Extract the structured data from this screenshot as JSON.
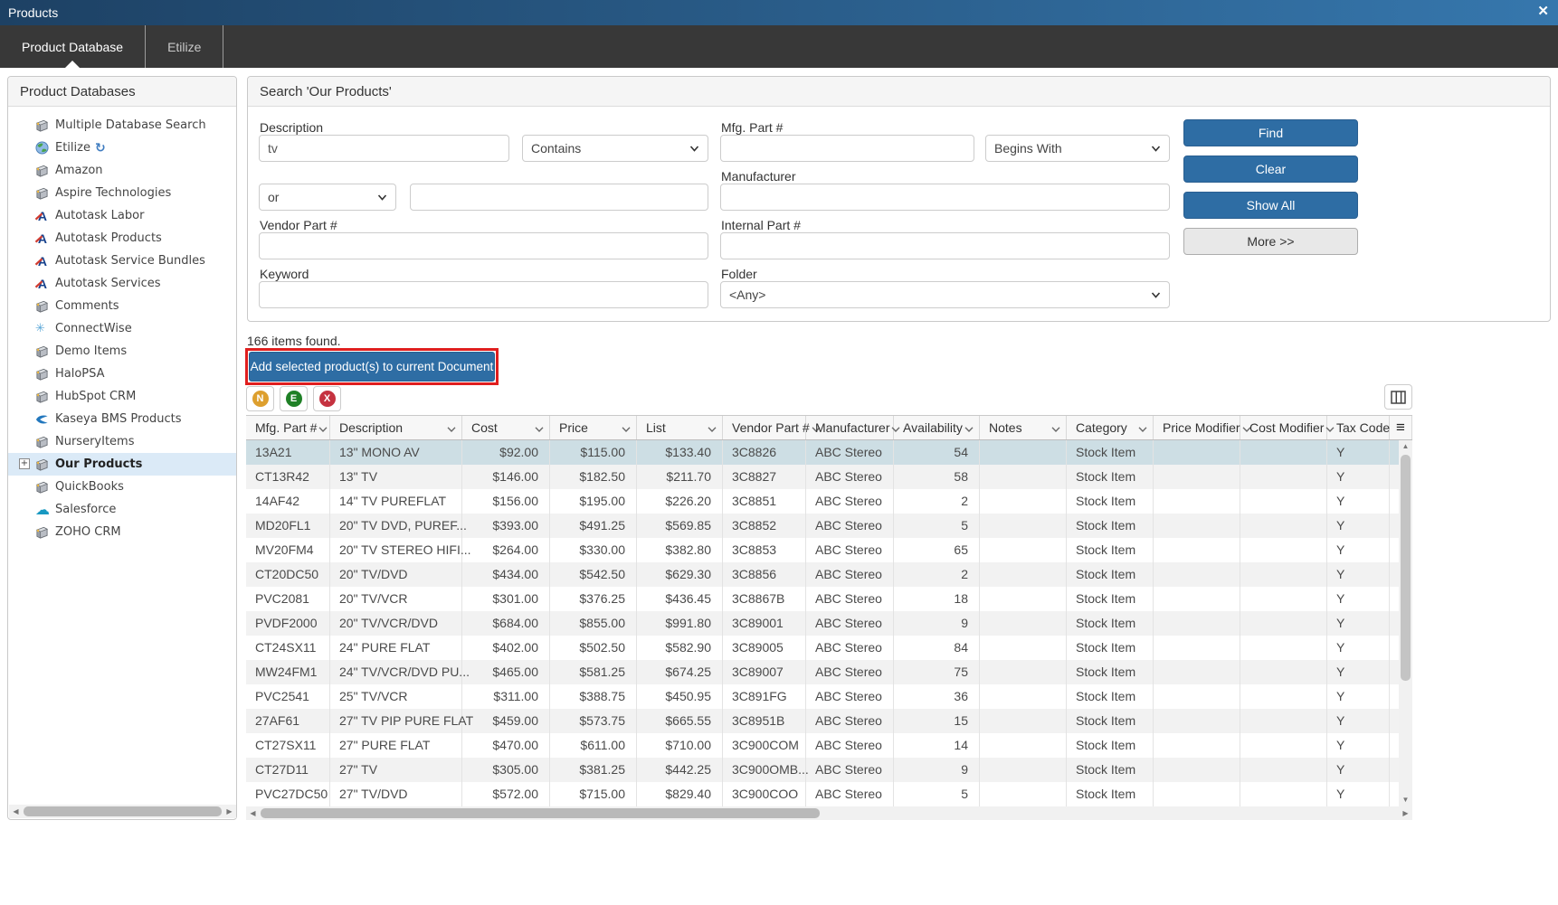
{
  "window": {
    "title": "Products",
    "close_icon": "✕"
  },
  "tabs": [
    {
      "label": "Product Database",
      "active": true
    },
    {
      "label": "Etilize",
      "active": false
    }
  ],
  "sidebar": {
    "title": "Product Databases",
    "items": [
      {
        "label": "Multiple Database Search",
        "icon": "database"
      },
      {
        "label": "Etilize",
        "icon": "globe",
        "suffix_icon": "refresh-arrow"
      },
      {
        "label": "Amazon",
        "icon": "database"
      },
      {
        "label": "Aspire Technologies",
        "icon": "database"
      },
      {
        "label": "Autotask Labor",
        "icon": "autotask"
      },
      {
        "label": "Autotask Products",
        "icon": "autotask"
      },
      {
        "label": "Autotask Service Bundles",
        "icon": "autotask"
      },
      {
        "label": "Autotask Services",
        "icon": "autotask"
      },
      {
        "label": "Comments",
        "icon": "database"
      },
      {
        "label": "ConnectWise",
        "icon": "connectwise"
      },
      {
        "label": "Demo Items",
        "icon": "database"
      },
      {
        "label": "HaloPSA",
        "icon": "database"
      },
      {
        "label": "HubSpot CRM",
        "icon": "database"
      },
      {
        "label": "Kaseya BMS Products",
        "icon": "kaseya"
      },
      {
        "label": "NurseryItems",
        "icon": "database"
      },
      {
        "label": "Our Products",
        "icon": "database",
        "selected": true,
        "expandable": true
      },
      {
        "label": "QuickBooks",
        "icon": "database"
      },
      {
        "label": "Salesforce",
        "icon": "salesforce"
      },
      {
        "label": "ZOHO CRM",
        "icon": "database"
      }
    ]
  },
  "search": {
    "title": "Search 'Our Products'",
    "description_label": "Description",
    "description_value": "tv",
    "description_match": "Contains",
    "operator_value": "or",
    "extra_value": "",
    "vendor_part_label": "Vendor Part #",
    "vendor_part_value": "",
    "keyword_label": "Keyword",
    "keyword_value": "",
    "mfg_part_label": "Mfg. Part #",
    "mfg_part_value": "",
    "mfg_part_match": "Begins With",
    "manufacturer_label": "Manufacturer",
    "manufacturer_value": "",
    "internal_part_label": "Internal Part #",
    "internal_part_value": "",
    "folder_label": "Folder",
    "folder_value": "<Any>",
    "find_label": "Find",
    "clear_label": "Clear",
    "show_all_label": "Show All",
    "more_label": "More >>"
  },
  "results": {
    "count_text": "166 items found.",
    "add_button_label": "Add selected product(s) to current Document",
    "row_actions": [
      {
        "name": "new",
        "letter": "N",
        "color": "#dd9f2e"
      },
      {
        "name": "edit",
        "letter": "E",
        "color": "#1f8026"
      },
      {
        "name": "delete",
        "letter": "X",
        "color": "#c53240"
      }
    ],
    "table": {
      "columns": [
        "Mfg. Part #",
        "Description",
        "Cost",
        "Price",
        "List",
        "Vendor Part #",
        "Manufacturer",
        "Availability",
        "Notes",
        "Category",
        "Price Modifier",
        "Cost Modifier",
        "Tax Code"
      ],
      "selected_row_index": 0,
      "rows": [
        [
          "13A21",
          "13\" MONO AV",
          "$92.00",
          "$115.00",
          "$133.40",
          "3C8826",
          "ABC Stereo",
          "54",
          "",
          "Stock Item",
          "",
          "",
          "Y"
        ],
        [
          "CT13R42",
          "13\" TV",
          "$146.00",
          "$182.50",
          "$211.70",
          "3C8827",
          "ABC Stereo",
          "58",
          "",
          "Stock Item",
          "",
          "",
          "Y"
        ],
        [
          "14AF42",
          "14\" TV PUREFLAT",
          "$156.00",
          "$195.00",
          "$226.20",
          "3C8851",
          "ABC Stereo",
          "2",
          "",
          "Stock Item",
          "",
          "",
          "Y"
        ],
        [
          "MD20FL1",
          "20\" TV DVD, PUREF...",
          "$393.00",
          "$491.25",
          "$569.85",
          "3C8852",
          "ABC Stereo",
          "5",
          "",
          "Stock Item",
          "",
          "",
          "Y"
        ],
        [
          "MV20FM4",
          "20\" TV STEREO HIFI...",
          "$264.00",
          "$330.00",
          "$382.80",
          "3C8853",
          "ABC Stereo",
          "65",
          "",
          "Stock Item",
          "",
          "",
          "Y"
        ],
        [
          "CT20DC50",
          "20\" TV/DVD",
          "$434.00",
          "$542.50",
          "$629.30",
          "3C8856",
          "ABC Stereo",
          "2",
          "",
          "Stock Item",
          "",
          "",
          "Y"
        ],
        [
          "PVC2081",
          "20\" TV/VCR",
          "$301.00",
          "$376.25",
          "$436.45",
          "3C8867B",
          "ABC Stereo",
          "18",
          "",
          "Stock Item",
          "",
          "",
          "Y"
        ],
        [
          "PVDF2000",
          "20\" TV/VCR/DVD",
          "$684.00",
          "$855.00",
          "$991.80",
          "3C89001",
          "ABC Stereo",
          "9",
          "",
          "Stock Item",
          "",
          "",
          "Y"
        ],
        [
          "CT24SX11",
          "24\" PURE FLAT",
          "$402.00",
          "$502.50",
          "$582.90",
          "3C89005",
          "ABC Stereo",
          "84",
          "",
          "Stock Item",
          "",
          "",
          "Y"
        ],
        [
          "MW24FM1",
          "24\" TV/VCR/DVD PU...",
          "$465.00",
          "$581.25",
          "$674.25",
          "3C89007",
          "ABC Stereo",
          "75",
          "",
          "Stock Item",
          "",
          "",
          "Y"
        ],
        [
          "PVC2541",
          "25\" TV/VCR",
          "$311.00",
          "$388.75",
          "$450.95",
          "3C891FG",
          "ABC Stereo",
          "36",
          "",
          "Stock Item",
          "",
          "",
          "Y"
        ],
        [
          "27AF61",
          "27\" TV PIP PURE FLAT",
          "$459.00",
          "$573.75",
          "$665.55",
          "3C8951B",
          "ABC Stereo",
          "15",
          "",
          "Stock Item",
          "",
          "",
          "Y"
        ],
        [
          "CT27SX11",
          "27\" PURE FLAT",
          "$470.00",
          "$611.00",
          "$710.00",
          "3C900COM",
          "ABC Stereo",
          "14",
          "",
          "Stock Item",
          "",
          "",
          "Y"
        ],
        [
          "CT27D11",
          "27\" TV",
          "$305.00",
          "$381.25",
          "$442.25",
          "3C900OMB...",
          "ABC Stereo",
          "9",
          "",
          "Stock Item",
          "",
          "",
          "Y"
        ],
        [
          "PVC27DC50",
          "27\" TV/DVD",
          "$572.00",
          "$715.00",
          "$829.40",
          "3C900COO",
          "ABC Stereo",
          "5",
          "",
          "Stock Item",
          "",
          "",
          "Y"
        ]
      ]
    }
  },
  "colors": {
    "accent_blue": "#2e6da4",
    "annotation_red": "#e01e1e",
    "selected_row": "#cddee4",
    "titlebar_gradient_left": "#1d4164",
    "titlebar_gradient_right": "#3677ad"
  }
}
